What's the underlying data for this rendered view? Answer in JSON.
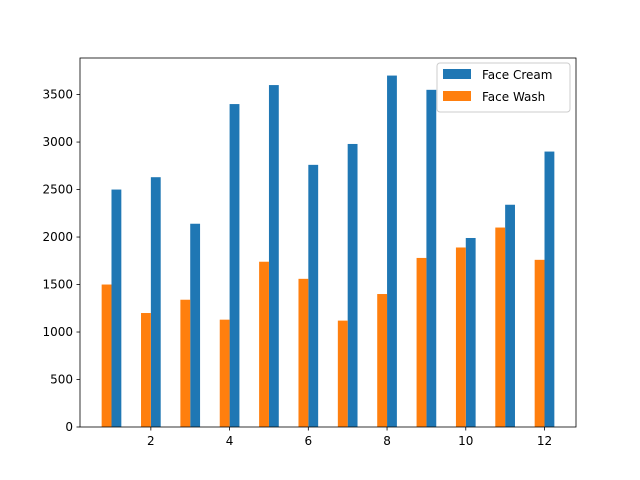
{
  "chart_data": {
    "type": "bar",
    "x": [
      1,
      2,
      3,
      4,
      5,
      6,
      7,
      8,
      9,
      10,
      11,
      12
    ],
    "series": [
      {
        "name": "Face Cream",
        "color": "#1f77b4",
        "values": [
          2500,
          2630,
          2140,
          3400,
          3600,
          2760,
          2980,
          3700,
          3550,
          1990,
          2340,
          2900
        ]
      },
      {
        "name": "Face Wash",
        "color": "#ff7f0e",
        "values": [
          1500,
          1200,
          1340,
          1130,
          1740,
          1560,
          1120,
          1400,
          1780,
          1890,
          2100,
          1760
        ]
      }
    ],
    "xticks": [
      "2",
      "4",
      "6",
      "8",
      "10",
      "12"
    ],
    "yticks": [
      "0",
      "500",
      "1000",
      "1500",
      "2000",
      "2500",
      "3000",
      "3500"
    ],
    "xlim": [
      0.2,
      12.8
    ],
    "ylim": [
      0,
      3885
    ],
    "grid": false,
    "legend_position": "upper right"
  }
}
